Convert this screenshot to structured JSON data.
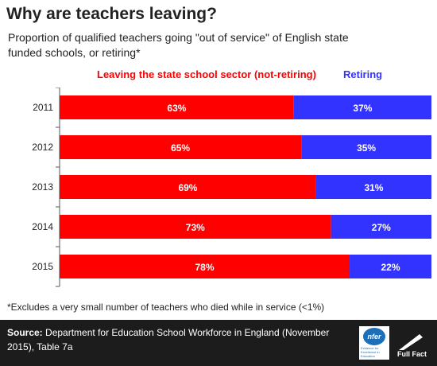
{
  "title": "Why are teachers leaving?",
  "subtitle": "Proportion of qualified teachers going \"out of service\" of English state funded schools, or retiring*",
  "footnote": "*Excludes a very small number of teachers who died while in service (<1%)",
  "footer": {
    "source_label": "Source:",
    "source_text": "Department for Education School Workforce in England (November 2015), Table 7a",
    "nfer_logo_text": "nfer",
    "nfer_tagline": "Evidence for Excellence in Education",
    "fullfact_text": "Full Fact"
  },
  "colors": {
    "leaving": "#ff0000",
    "retiring": "#3333ff",
    "footer_bg": "#1c1c1c"
  },
  "chart_data": {
    "type": "bar",
    "orientation": "horizontal",
    "stacked": true,
    "categories": [
      "2011",
      "2012",
      "2013",
      "2014",
      "2015"
    ],
    "series": [
      {
        "name": "Leaving the state school  sector (not-retiring)",
        "values": [
          63,
          65,
          69,
          73,
          78
        ],
        "labels": [
          "63%",
          "65%",
          "69%",
          "73%",
          "78%"
        ],
        "color": "#ff0000"
      },
      {
        "name": "Retiring",
        "values": [
          37,
          35,
          31,
          27,
          22
        ],
        "labels": [
          "37%",
          "35%",
          "31%",
          "27%",
          "22%"
        ],
        "color": "#3333ff"
      }
    ],
    "xlim": [
      0,
      100
    ],
    "legend": "top",
    "grid": false
  }
}
